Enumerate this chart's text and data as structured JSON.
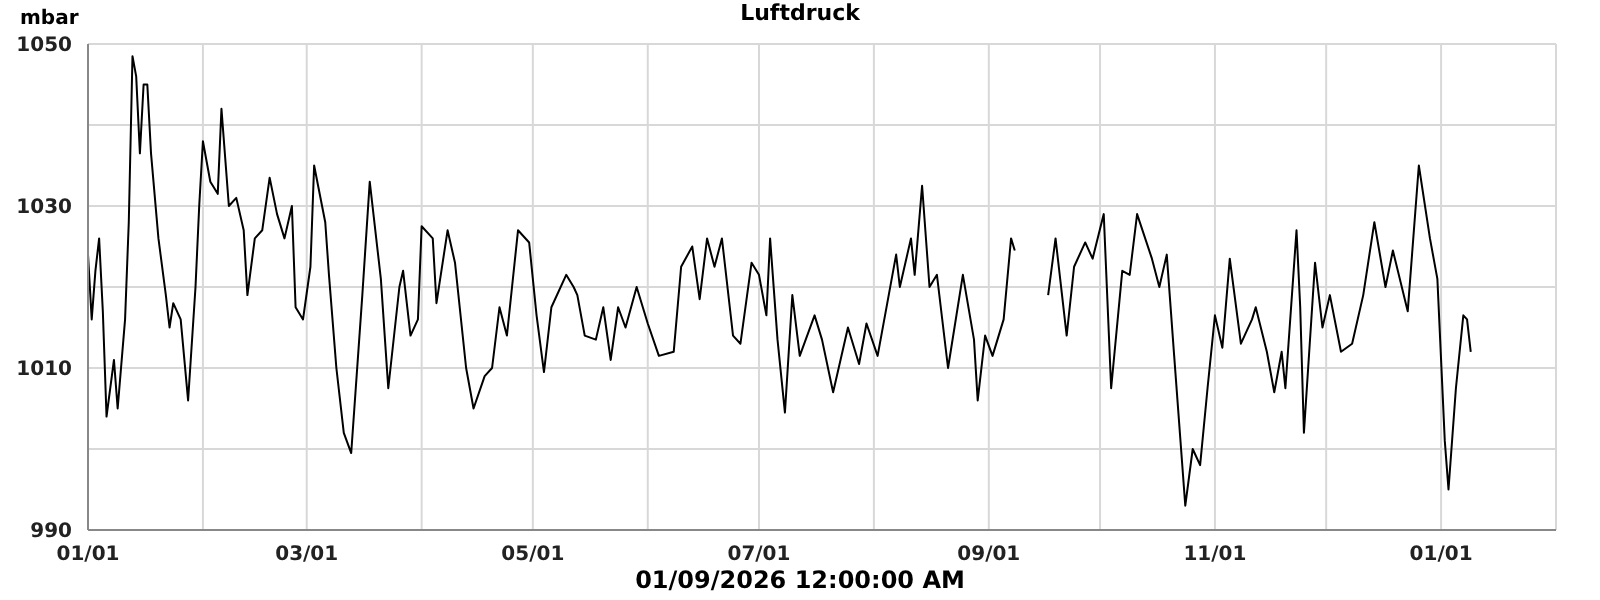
{
  "chart_data": {
    "type": "line",
    "title": "Luftdruck",
    "ylabel": "mbar",
    "xlabel": "01/09/2026 12:00:00 AM",
    "x": [
      "2025-01-01",
      "2025-01-02",
      "2025-01-03",
      "2025-01-04",
      "2025-01-05",
      "2025-01-06",
      "2025-01-08",
      "2025-01-09",
      "2025-01-11",
      "2025-01-12",
      "2025-01-13",
      "2025-01-14",
      "2025-01-15",
      "2025-01-16",
      "2025-01-17",
      "2025-01-18",
      "2025-01-20",
      "2025-01-22",
      "2025-01-23",
      "2025-01-24",
      "2025-01-26",
      "2025-01-28",
      "2025-01-30",
      "2025-01-31",
      "2025-02-01",
      "2025-02-03",
      "2025-02-05",
      "2025-02-06",
      "2025-02-08",
      "2025-02-10",
      "2025-02-12",
      "2025-02-13",
      "2025-02-15",
      "2025-02-17",
      "2025-02-19",
      "2025-02-21",
      "2025-02-23",
      "2025-02-25",
      "2025-02-26",
      "2025-02-28",
      "2025-03-02",
      "2025-03-03",
      "2025-03-06",
      "2025-03-07",
      "2025-03-09",
      "2025-03-11",
      "2025-03-13",
      "2025-03-16",
      "2025-03-18",
      "2025-03-21",
      "2025-03-23",
      "2025-03-26",
      "2025-03-27",
      "2025-03-29",
      "2025-03-31",
      "2025-04-01",
      "2025-04-04",
      "2025-04-05",
      "2025-04-08",
      "2025-04-10",
      "2025-04-13",
      "2025-04-15",
      "2025-04-18",
      "2025-04-20",
      "2025-04-22",
      "2025-04-24",
      "2025-04-27",
      "2025-04-30",
      "2025-05-02",
      "2025-05-04",
      "2025-05-06",
      "2025-05-10",
      "2025-05-12",
      "2025-05-13",
      "2025-05-15",
      "2025-05-18",
      "2025-05-20",
      "2025-05-22",
      "2025-05-24",
      "2025-05-26",
      "2025-05-29",
      "2025-06-01",
      "2025-06-04",
      "2025-06-08",
      "2025-06-10",
      "2025-06-13",
      "2025-06-15",
      "2025-06-17",
      "2025-06-19",
      "2025-06-21",
      "2025-06-24",
      "2025-06-26",
      "2025-06-29",
      "2025-07-01",
      "2025-07-03",
      "2025-07-04",
      "2025-07-06",
      "2025-07-08",
      "2025-07-10",
      "2025-07-12",
      "2025-07-16",
      "2025-07-18",
      "2025-07-21",
      "2025-07-25",
      "2025-07-28",
      "2025-07-30",
      "2025-08-02",
      "2025-08-05",
      "2025-08-07",
      "2025-08-08",
      "2025-08-11",
      "2025-08-12",
      "2025-08-14",
      "2025-08-16",
      "2025-08-18",
      "2025-08-21",
      "2025-08-25",
      "2025-08-28",
      "2025-08-29",
      "2025-08-31",
      "2025-09-02",
      "2025-09-05",
      "2025-09-07",
      "2025-09-08",
      "2025-09-12",
      "2025-09-17",
      "2025-09-19",
      "2025-09-22",
      "2025-09-24",
      "2025-09-27",
      "2025-09-29",
      "2025-10-02",
      "2025-10-04",
      "2025-10-07",
      "2025-10-09",
      "2025-10-11",
      "2025-10-15",
      "2025-10-17",
      "2025-10-19",
      "2025-10-21",
      "2025-10-24",
      "2025-10-26",
      "2025-10-28",
      "2025-10-30",
      "2025-11-01",
      "2025-11-03",
      "2025-11-05",
      "2025-11-08",
      "2025-11-11",
      "2025-11-12",
      "2025-11-15",
      "2025-11-17",
      "2025-11-19",
      "2025-11-20",
      "2025-11-23",
      "2025-11-24",
      "2025-11-25",
      "2025-11-28",
      "2025-11-30",
      "2025-12-02",
      "2025-12-05",
      "2025-12-08",
      "2025-12-11",
      "2025-12-14",
      "2025-12-17",
      "2025-12-19",
      "2025-12-23",
      "2025-12-26",
      "2025-12-29",
      "2025-12-31",
      "2026-01-02",
      "2026-01-03",
      "2026-01-05",
      "2026-01-07",
      "2026-01-08",
      "2026-01-09"
    ],
    "series": [
      {
        "color": "#000000",
        "values": [
          1024,
          1016,
          1022,
          1026,
          1017,
          1004,
          1011,
          1005,
          1016,
          1028,
          1048.5,
          1046,
          1036.5,
          1045,
          1045,
          1036.5,
          1026,
          1019,
          1015,
          1018,
          1016,
          1006,
          1020,
          1030,
          1038,
          1033,
          1031.5,
          1042,
          1030,
          1031,
          1027,
          1019,
          1026,
          1027,
          1033.5,
          1029,
          1026,
          1030,
          1017.5,
          1016,
          1022.5,
          1035,
          1028,
          1021.5,
          1010,
          1002,
          999.5,
          1019,
          1033,
          1021,
          1007.5,
          1020,
          1022,
          1014,
          1016,
          1027.5,
          1026,
          1018,
          1027,
          1023,
          1010,
          1005,
          1009,
          1010,
          1017.5,
          1014,
          1027,
          1025.5,
          1016.5,
          1009.5,
          1017.5,
          1021.5,
          1020,
          1019,
          1014,
          1013.5,
          1017.5,
          1011,
          1017.5,
          1015,
          1020,
          1015.5,
          1011.5,
          1012,
          1022.5,
          1025,
          1018.5,
          1026,
          1022.5,
          1026,
          1014,
          1013,
          1023,
          1021.5,
          1016.5,
          1026,
          1013.5,
          1004.5,
          1019,
          1011.5,
          1016.5,
          1013.5,
          1007,
          1015,
          1010.5,
          1015.5,
          1011.5,
          1019,
          1024,
          1020,
          1026,
          1021.5,
          1032.5,
          1020,
          1021.5,
          1010,
          1021.5,
          1013.5,
          1006,
          1014,
          1011.5,
          1016,
          1026,
          1024.5,
          null,
          1019,
          1026,
          1014,
          1022.5,
          1025.5,
          1023.5,
          1029,
          1007.5,
          1022,
          1021.5,
          1029,
          1023.5,
          1020,
          1024,
          1011.5,
          993,
          1000,
          998,
          1007.5,
          1016.5,
          1012.5,
          1023.5,
          1013,
          1016,
          1017.5,
          1012,
          1007,
          1012,
          1007.5,
          1027,
          1017.5,
          1002,
          1023,
          1015,
          1019,
          1012,
          1013,
          1019,
          1028,
          1020,
          1024.5,
          1017,
          1035,
          1026,
          1021,
          1001,
          995,
          1007.5,
          1016.5,
          1016,
          1012
        ]
      }
    ],
    "xlim": [
      "2025-01-01",
      "2026-02-01"
    ],
    "xticks": [
      {
        "value": "2025-01-01",
        "label": "01/01"
      },
      {
        "value": "2025-02-01",
        "label": null
      },
      {
        "value": "2025-03-01",
        "label": "03/01"
      },
      {
        "value": "2025-04-01",
        "label": null
      },
      {
        "value": "2025-05-01",
        "label": "05/01"
      },
      {
        "value": "2025-06-01",
        "label": null
      },
      {
        "value": "2025-07-01",
        "label": "07/01"
      },
      {
        "value": "2025-08-01",
        "label": null
      },
      {
        "value": "2025-09-01",
        "label": "09/01"
      },
      {
        "value": "2025-10-01",
        "label": null
      },
      {
        "value": "2025-11-01",
        "label": "11/01"
      },
      {
        "value": "2025-12-01",
        "label": null
      },
      {
        "value": "2026-01-01",
        "label": "01/01"
      },
      {
        "value": "2026-02-01",
        "label": null
      }
    ],
    "ylim": [
      990,
      1050
    ],
    "yticks": [
      990,
      {
        "value": 1000,
        "label": null
      },
      1010,
      {
        "value": 1020,
        "label": null
      },
      1030,
      {
        "value": 1040,
        "label": null
      },
      1050
    ],
    "grid": true,
    "legend": false,
    "marker": "none",
    "line_style": "solid"
  }
}
